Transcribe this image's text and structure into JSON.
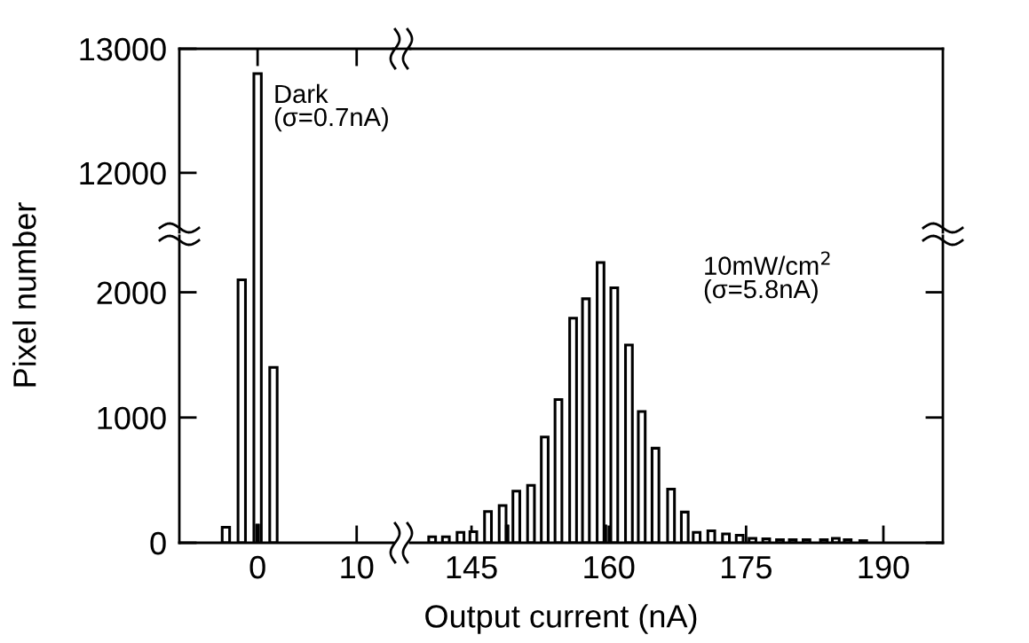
{
  "chart_data": [
    {
      "type": "bar",
      "x": [
        0
      ],
      "series": [
        {
          "color": "#ffffff",
          "values": [
            12800
          ]
        }
      ],
      "xlim": [
        -7.9,
        13.7
      ],
      "ylim": [
        11520,
        13000
      ],
      "xticks": [
        0,
        10
      ],
      "yticks": [
        12000,
        13000
      ],
      "tick_labels": "y",
      "annotations": [
        "Dark\n(σ=0.7nA)"
      ]
    },
    {
      "type": "bar",
      "x": [
        -3.2,
        -1.6,
        0,
        1.6
      ],
      "series": [
        {
          "color": "#ffffff",
          "values": [
            124,
            2100,
            null,
            1400
          ]
        },
        {
          "color": "#000000",
          "x": [
            0
          ],
          "values": [
            150
          ]
        }
      ],
      "xlim": [
        -7.9,
        13.7
      ],
      "ylim": [
        0,
        2450
      ],
      "xticks": [
        0,
        10
      ],
      "yticks": [
        0,
        1000,
        2000
      ],
      "ylabel": "Pixel number"
    },
    {
      "type": "bar",
      "x": [
        140.7,
        142.2,
        143.8,
        145.2,
        146.8,
        148.4,
        149.9,
        151.5,
        153.0,
        154.5,
        156.1,
        157.5,
        159.1,
        160.6,
        162.2,
        163.6,
        165.1,
        166.8,
        168.3,
        169.6,
        171.2,
        172.8,
        174.3,
        175.7,
        177.2,
        178.7,
        180.1,
        181.6,
        183.5,
        184.8,
        186.1,
        187.8
      ],
      "series": [
        {
          "color": "#ffffff",
          "values": [
            48,
            48,
            83,
            88,
            250,
            298,
            412,
            459,
            845,
            1143,
            1793,
            1948,
            2238,
            2036,
            1579,
            1048,
            755,
            429,
            245,
            83,
            95,
            71,
            60,
            36,
            31,
            24,
            24,
            24,
            24,
            36,
            24,
            17
          ]
        },
        {
          "color": "#000000",
          "x": [
            148.9,
            159.6
          ],
          "values": [
            143,
            143
          ]
        }
      ],
      "xlim": [
        138.3,
        196.5
      ],
      "ylim": [
        0,
        2450
      ],
      "xticks": [
        145,
        160,
        175,
        190
      ],
      "yticks": [
        0,
        1000,
        2000
      ],
      "tick_labels": "x",
      "xlabel": "Output current (nA)",
      "annotations": [
        "10mW/cm$^{2}$\n(σ=5.8nA)"
      ]
    }
  ]
}
